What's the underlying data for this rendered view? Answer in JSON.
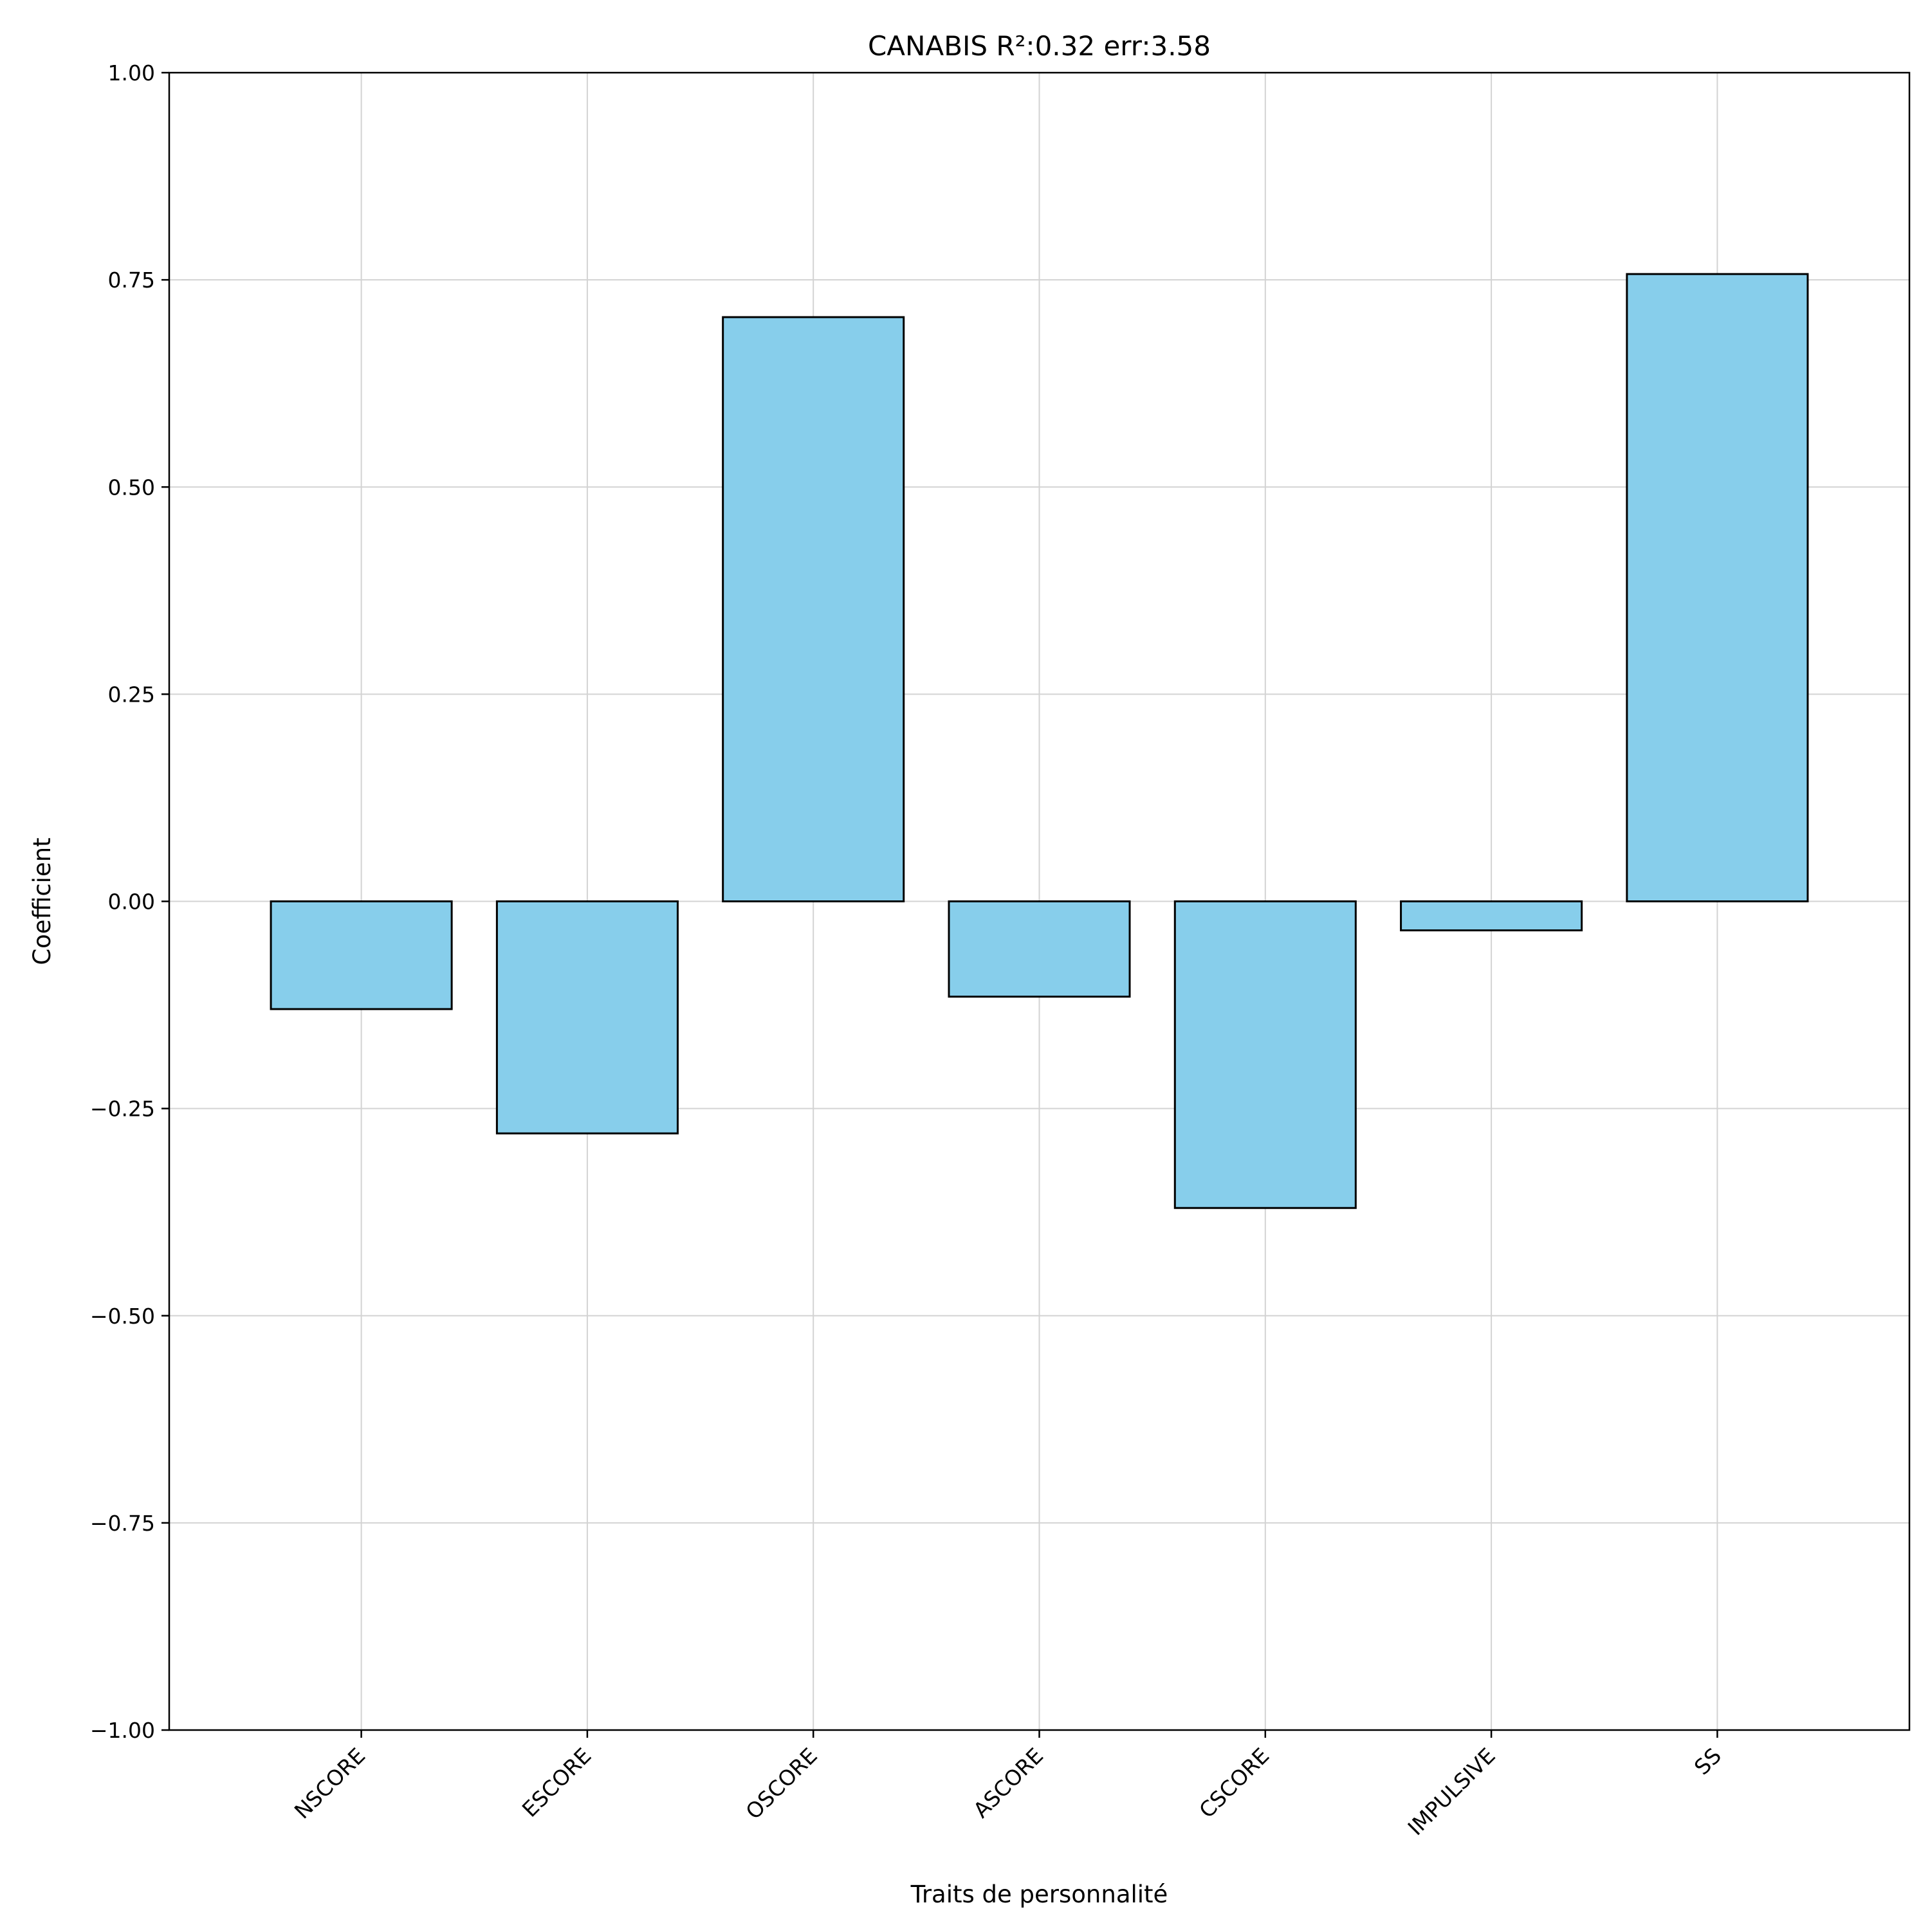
{
  "chart_data": {
    "type": "bar",
    "title": "CANABIS R²:0.32 err:3.58",
    "xlabel": "Traits de personnalité",
    "ylabel": "Coefficient",
    "categories": [
      "NSCORE",
      "ESCORE",
      "OSCORE",
      "ASCORE",
      "CSCORE",
      "IMPULSIVE",
      "SS"
    ],
    "values": [
      -0.13,
      -0.28,
      0.705,
      -0.115,
      -0.37,
      -0.035,
      0.757
    ],
    "ylim": [
      -1.0,
      1.0
    ],
    "yticks": [
      1.0,
      0.75,
      0.5,
      0.25,
      0.0,
      -0.25,
      -0.5,
      -0.75,
      -1.0
    ],
    "ytick_labels": [
      "1.00",
      "0.75",
      "0.50",
      "0.25",
      "0.00",
      "−0.25",
      "−0.50",
      "−0.75",
      "−1.00"
    ],
    "grid": true,
    "colors": {
      "bar_fill": "#87ceeb",
      "bar_edge": "#000000",
      "grid": "#d3d3d3",
      "axes": "#000000"
    }
  }
}
